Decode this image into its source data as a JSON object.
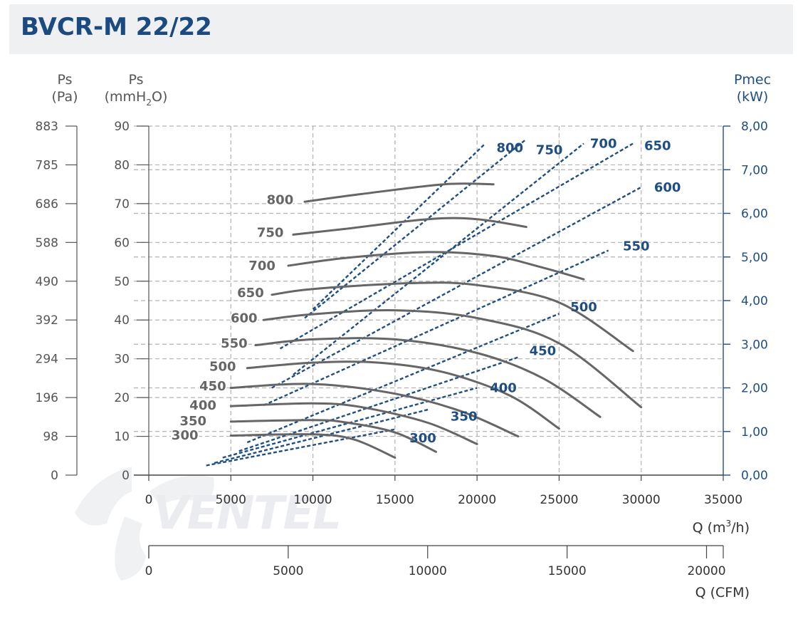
{
  "title": "BVCR-M 22/22",
  "watermark": "VENTEL",
  "chart_data": {
    "type": "line",
    "title": "BVCR-M 22/22",
    "axes": {
      "ps_pa": {
        "label": "Ps",
        "unit": "(Pa)",
        "ticks": [
          "0",
          "98",
          "196",
          "294",
          "392",
          "490",
          "588",
          "686",
          "785",
          "883"
        ]
      },
      "ps_mmh2o": {
        "label": "Ps",
        "unit_prefix": "(mmH",
        "unit_sub": "2",
        "unit_suffix": "O)",
        "range": [
          0,
          90
        ],
        "ticks": [
          "0",
          "10",
          "20",
          "30",
          "40",
          "50",
          "60",
          "70",
          "80",
          "90"
        ]
      },
      "pmec_kw": {
        "label": "Pmec",
        "unit": "(kW)",
        "range": [
          0,
          8
        ],
        "ticks": [
          "0,00",
          "1,00",
          "2,00",
          "3,00",
          "4,00",
          "5,00",
          "6,00",
          "7,00",
          "8,00"
        ]
      },
      "q_m3h": {
        "label_prefix": "Q (m",
        "label_sup": "3",
        "label_suffix": "/h)",
        "range": [
          0,
          35000
        ],
        "ticks": [
          "0",
          "5000",
          "10000",
          "15000",
          "20000",
          "25000",
          "30000",
          "35000"
        ]
      },
      "q_cfm": {
        "label": "Q (CFM)",
        "range": [
          0,
          20600
        ],
        "ticks": [
          "0",
          "5000",
          "10000",
          "15000",
          "20000"
        ]
      }
    },
    "grid": true,
    "pressure_curves": [
      {
        "rpm": "300",
        "points": [
          [
            5000,
            10.2
          ],
          [
            10000,
            10.5
          ],
          [
            12500,
            9.2
          ],
          [
            15000,
            4.5
          ]
        ]
      },
      {
        "rpm": "350",
        "points": [
          [
            5000,
            13.8
          ],
          [
            10000,
            14.2
          ],
          [
            12000,
            13.6
          ],
          [
            15000,
            11.0
          ],
          [
            17500,
            6.0
          ]
        ]
      },
      {
        "rpm": "400",
        "points": [
          [
            5000,
            17.8
          ],
          [
            10000,
            18.5
          ],
          [
            13000,
            17.5
          ],
          [
            17000,
            13.5
          ],
          [
            20000,
            8.0
          ]
        ]
      },
      {
        "rpm": "450",
        "points": [
          [
            5000,
            22.5
          ],
          [
            10000,
            23.5
          ],
          [
            15000,
            21.0
          ],
          [
            19000,
            16.5
          ],
          [
            22500,
            10.0
          ]
        ]
      },
      {
        "rpm": "500",
        "points": [
          [
            6000,
            27.6
          ],
          [
            10000,
            29.0
          ],
          [
            14000,
            29.0
          ],
          [
            18000,
            26.5
          ],
          [
            22000,
            20.5
          ],
          [
            25000,
            12.0
          ]
        ]
      },
      {
        "rpm": "550",
        "points": [
          [
            6500,
            33.5
          ],
          [
            10000,
            35.0
          ],
          [
            15000,
            35.0
          ],
          [
            20000,
            31.5
          ],
          [
            24000,
            25.0
          ],
          [
            27500,
            15.0
          ]
        ]
      },
      {
        "rpm": "600",
        "points": [
          [
            7000,
            40.0
          ],
          [
            10000,
            41.5
          ],
          [
            15000,
            42.5
          ],
          [
            20000,
            40.5
          ],
          [
            25000,
            34.0
          ],
          [
            30000,
            17.5
          ]
        ]
      },
      {
        "rpm": "650",
        "points": [
          [
            7500,
            46.5
          ],
          [
            10000,
            48.0
          ],
          [
            16000,
            49.5
          ],
          [
            20000,
            49.0
          ],
          [
            25000,
            44.5
          ],
          [
            29500,
            32.0
          ]
        ]
      },
      {
        "rpm": "700",
        "points": [
          [
            8500,
            54.0
          ],
          [
            12000,
            56.0
          ],
          [
            17000,
            57.5
          ],
          [
            21000,
            56.5
          ],
          [
            24000,
            53.5
          ],
          [
            26500,
            50.5
          ]
        ]
      },
      {
        "rpm": "750",
        "points": [
          [
            8800,
            62.0
          ],
          [
            12000,
            63.5
          ],
          [
            17000,
            66.0
          ],
          [
            20000,
            66.0
          ],
          [
            23000,
            64.0
          ]
        ]
      },
      {
        "rpm": "800",
        "points": [
          [
            9500,
            70.5
          ],
          [
            13000,
            72.5
          ],
          [
            18000,
            75.0
          ],
          [
            21000,
            75.0
          ]
        ]
      }
    ],
    "pressure_curve_labels": [
      {
        "rpm": "300",
        "label_at": [
          2200,
          10.3
        ]
      },
      {
        "rpm": "350",
        "label_at": [
          2700,
          14.0
        ]
      },
      {
        "rpm": "400",
        "label_at": [
          3300,
          18.0
        ]
      },
      {
        "rpm": "450",
        "label_at": [
          3900,
          23.0
        ]
      },
      {
        "rpm": "500",
        "label_at": [
          4500,
          28.0
        ]
      },
      {
        "rpm": "550",
        "label_at": [
          5200,
          34.0
        ]
      },
      {
        "rpm": "600",
        "label_at": [
          5800,
          40.5
        ]
      },
      {
        "rpm": "650",
        "label_at": [
          6200,
          47.0
        ]
      },
      {
        "rpm": "700",
        "label_at": [
          6900,
          54.0
        ]
      },
      {
        "rpm": "750",
        "label_at": [
          7400,
          62.5
        ]
      },
      {
        "rpm": "800",
        "label_at": [
          8000,
          71.0
        ]
      }
    ],
    "power_curves": [
      {
        "rpm": "300",
        "points": [
          [
            3500,
            0.22
          ],
          [
            15000,
            1.05
          ]
        ],
        "label_at": [
          16700,
          0.85
        ]
      },
      {
        "rpm": "350",
        "points": [
          [
            4000,
            0.28
          ],
          [
            17000,
            1.5
          ]
        ],
        "label_at": [
          19200,
          1.35
        ]
      },
      {
        "rpm": "400",
        "points": [
          [
            4500,
            0.4
          ],
          [
            20000,
            2.0
          ]
        ],
        "label_at": [
          21600,
          2.0
        ]
      },
      {
        "rpm": "450",
        "points": [
          [
            5500,
            0.55
          ],
          [
            22500,
            2.7
          ]
        ],
        "label_at": [
          24000,
          2.85
        ]
      },
      {
        "rpm": "500",
        "points": [
          [
            6000,
            0.75
          ],
          [
            25000,
            3.7
          ]
        ],
        "label_at": [
          26500,
          3.85
        ]
      },
      {
        "rpm": "550",
        "points": [
          [
            7000,
            1.6
          ],
          [
            28000,
            5.15
          ]
        ],
        "label_at": [
          29700,
          5.25
        ]
      },
      {
        "rpm": "600",
        "points": [
          [
            7500,
            2.0
          ],
          [
            30000,
            6.6
          ]
        ],
        "label_at": [
          31600,
          6.6
        ]
      },
      {
        "rpm": "650",
        "points": [
          [
            8000,
            2.9
          ],
          [
            29500,
            7.6
          ]
        ],
        "label_at": [
          31000,
          7.55
        ]
      },
      {
        "rpm": "700",
        "points": [
          [
            8800,
            2.3
          ],
          [
            26500,
            7.6
          ]
        ],
        "label_at": [
          27700,
          7.6
        ]
      },
      {
        "rpm": "750",
        "points": [
          [
            9500,
            3.6
          ],
          [
            23000,
            7.7
          ]
        ],
        "label_at": [
          24400,
          7.45
        ]
      },
      {
        "rpm": "800",
        "points": [
          [
            10000,
            3.8
          ],
          [
            20500,
            7.6
          ]
        ],
        "label_at": [
          22000,
          7.5
        ]
      }
    ],
    "colors": {
      "pressure": "#666666",
      "power": "#1f4e82",
      "grid": "#b3b3b3",
      "right_axis": "#1f4e82",
      "title": "#1a4a80"
    }
  }
}
